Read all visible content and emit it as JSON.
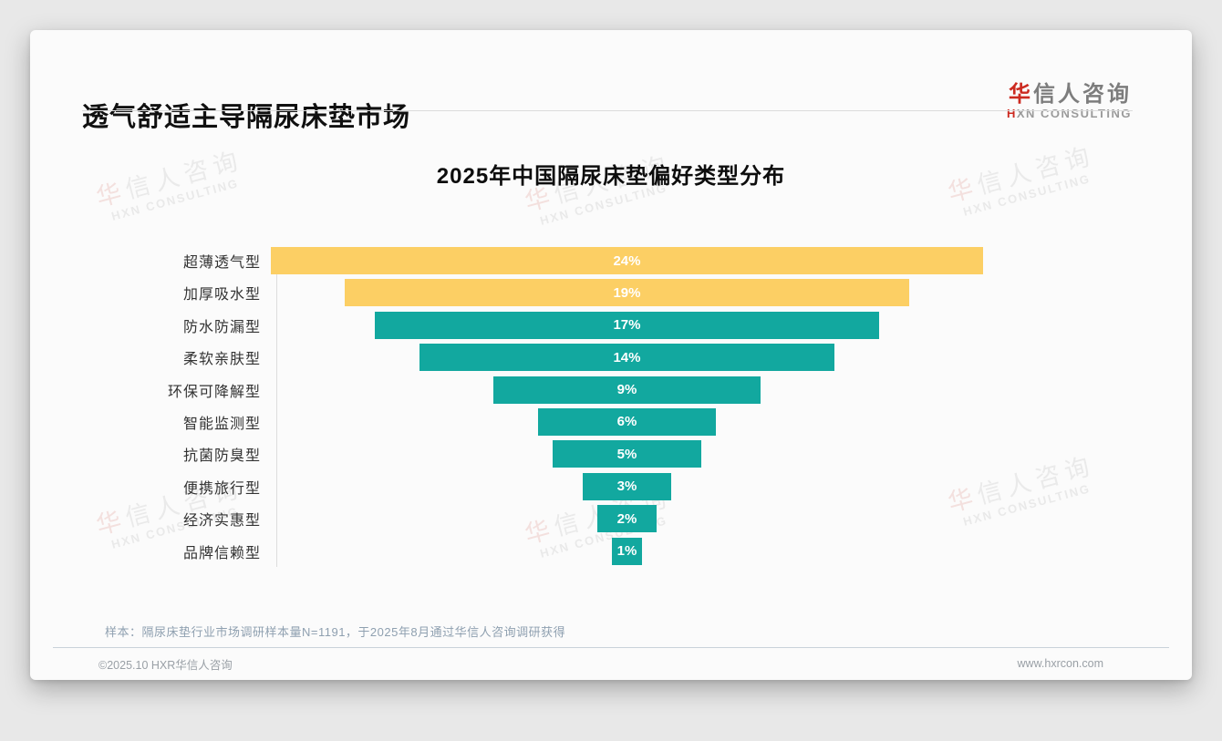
{
  "page": {
    "header": {
      "title": "透气舒适主导隔尿床垫市场",
      "logo": {
        "cn_accent": "华",
        "cn_rest": "信人咨询",
        "en_accent": "H",
        "en_rest": "XN CONSULTING"
      }
    },
    "watermark": {
      "line1_accent": "华",
      "line1_rest": "信人咨询",
      "line2": "HXN CONSULTING"
    },
    "footnote": "样本：隔尿床垫行业市场调研样本量N=1191，于2025年8月通过华信人咨询调研获得",
    "footer": {
      "copyright": "©2025.10 HXR华信人咨询",
      "website": "www.hxrcon.com"
    }
  },
  "chart_data": {
    "type": "bar",
    "subtype": "centered-horizontal-funnel",
    "title": "2025年中国隔尿床垫偏好类型分布",
    "categories": [
      "超薄透气型",
      "加厚吸水型",
      "防水防漏型",
      "柔软亲肤型",
      "环保可降解型",
      "智能监测型",
      "抗菌防臭型",
      "便携旅行型",
      "经济实惠型",
      "品牌信赖型"
    ],
    "values": [
      24,
      19,
      17,
      14,
      9,
      6,
      5,
      3,
      2,
      1
    ],
    "value_labels": [
      "24%",
      "19%",
      "17%",
      "14%",
      "9%",
      "6%",
      "5%",
      "3%",
      "2%",
      "1%"
    ],
    "unit": "%",
    "xlim": [
      0,
      24
    ],
    "grid": false,
    "legend": null,
    "bar_colors": [
      "#FCCF64",
      "#FCCF64",
      "#12A89F",
      "#12A89F",
      "#12A89F",
      "#12A89F",
      "#12A89F",
      "#12A89F",
      "#12A89F",
      "#12A89F"
    ],
    "colors": {
      "highlight_yellow": "#FCCF64",
      "base_teal": "#12A89F",
      "value_text": "#ffffff"
    }
  }
}
